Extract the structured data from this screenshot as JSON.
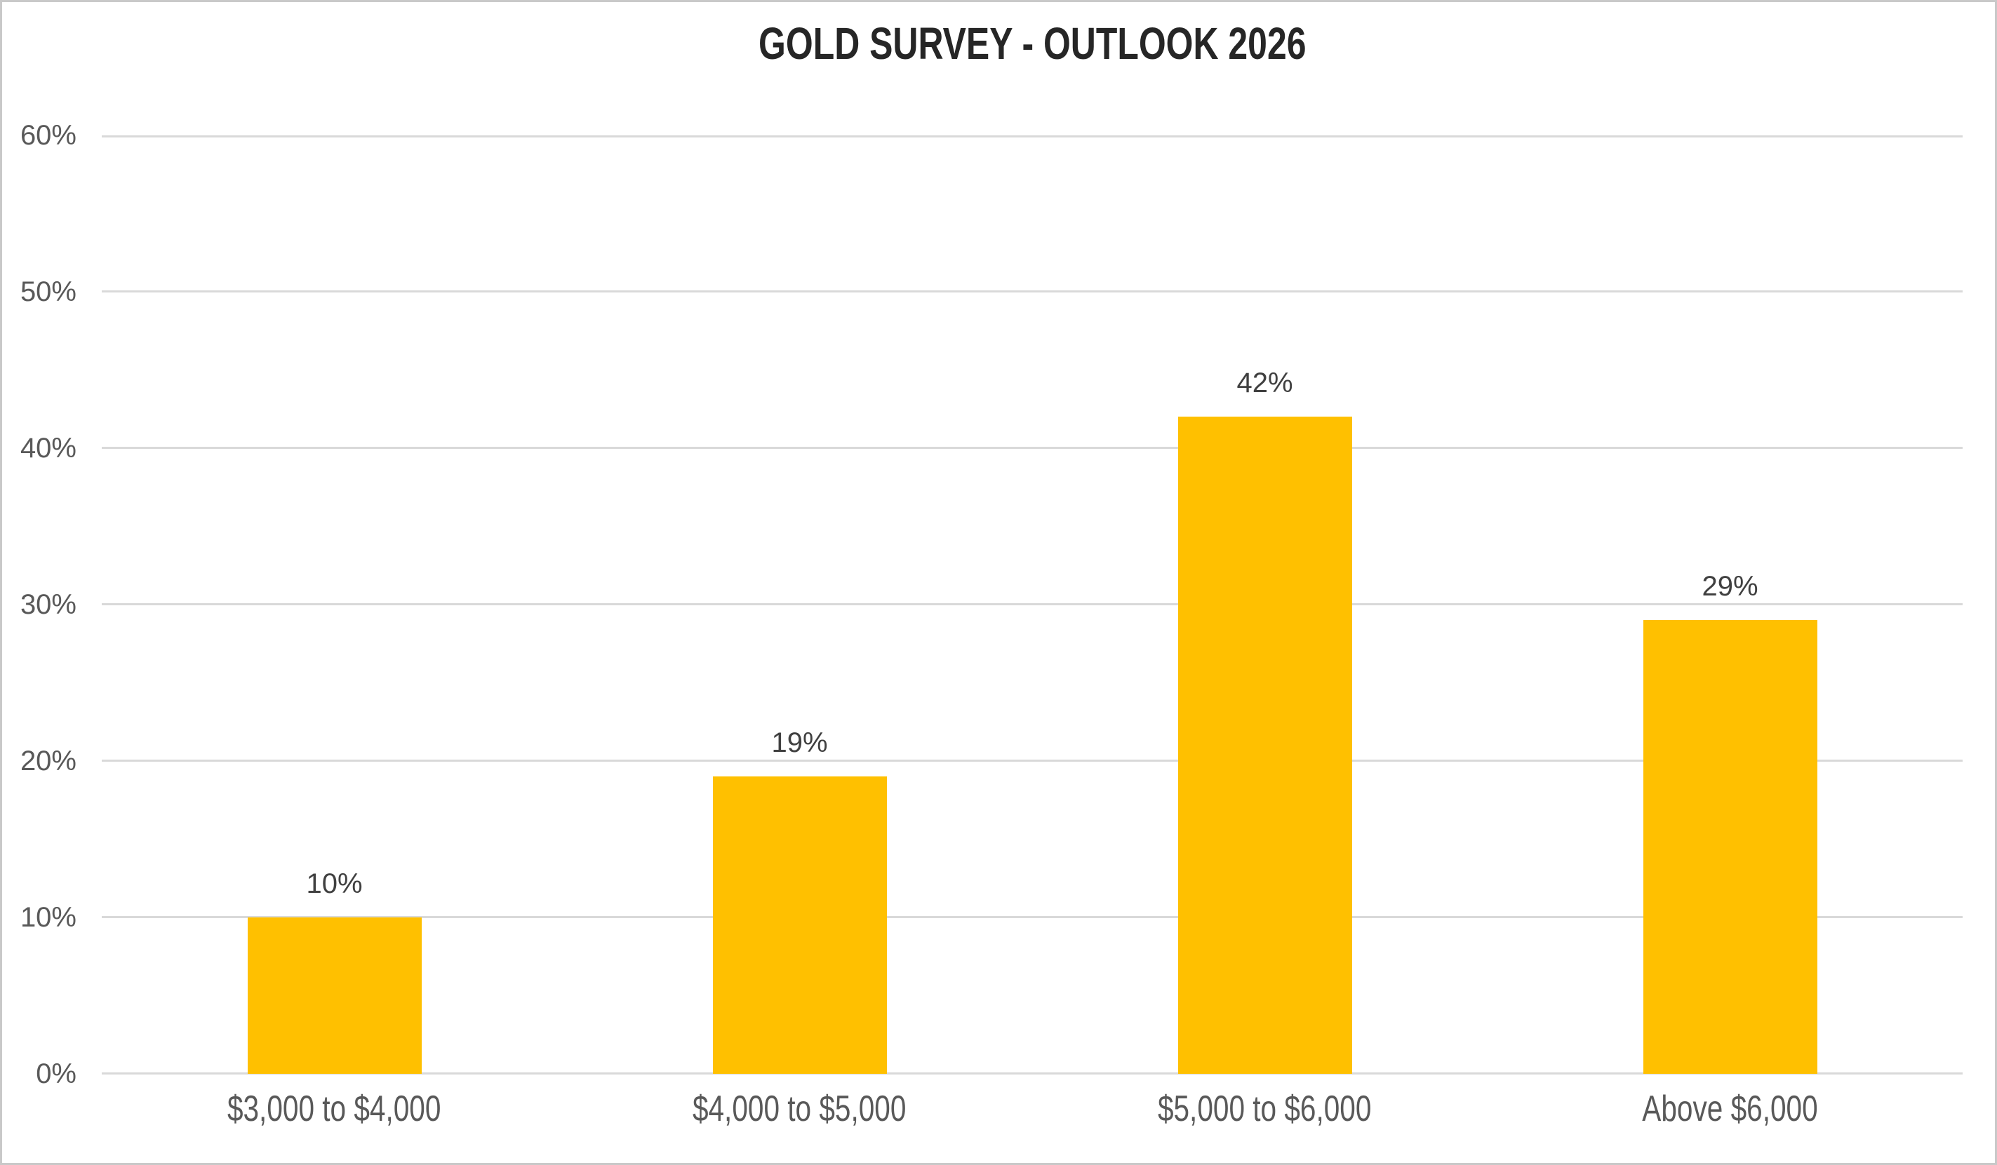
{
  "chart_data": {
    "type": "bar",
    "title": "GOLD SURVEY - OUTLOOK 2026",
    "categories": [
      "$3,000 to $4,000",
      "$4,000 to $5,000",
      "$5,000 to $6,000",
      "Above $6,000"
    ],
    "values": [
      10,
      19,
      42,
      29
    ],
    "data_labels": [
      "10%",
      "19%",
      "42%",
      "29%"
    ],
    "ylim": [
      0,
      60
    ],
    "ytick_step": 10,
    "ytick_labels": [
      "0%",
      "10%",
      "20%",
      "30%",
      "40%",
      "50%",
      "60%"
    ],
    "xlabel": "",
    "ylabel": "",
    "grid": true,
    "legend": false,
    "colors": {
      "bar": "#FFC000",
      "gridline": "#D9D9D9",
      "axis_labels": "#595959",
      "data_labels": "#404040",
      "title": "#262626",
      "background": "#FFFFFF",
      "border": "#C9C9C9"
    }
  }
}
